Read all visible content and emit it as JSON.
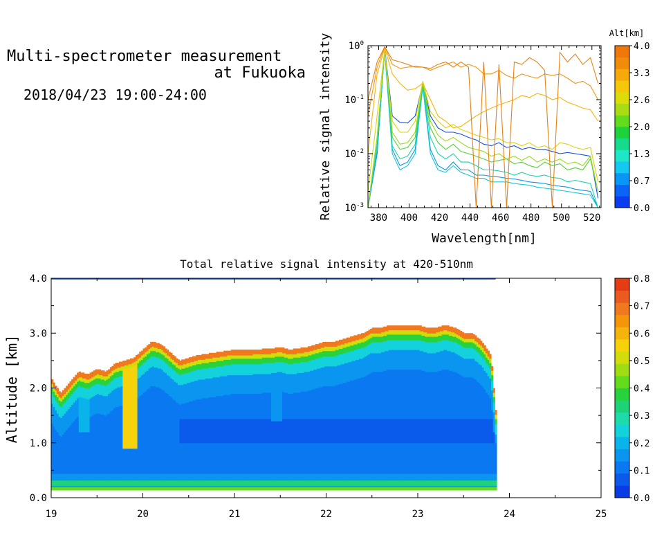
{
  "header": {
    "title_line1": "Multi-spectrometer measurement",
    "title_line2": "at Fukuoka",
    "date_range": "2018/04/23 19:00-24:00"
  },
  "chart_data": [
    {
      "type": "line",
      "title": "",
      "xlabel": "Wavelength[nm]",
      "ylabel": "Relative signal intensity",
      "xlim": [
        373,
        526
      ],
      "ylim": [
        0.001,
        1
      ],
      "yscale": "log",
      "x_ticks": [
        380,
        400,
        420,
        440,
        460,
        480,
        500,
        520
      ],
      "y_ticks": [
        {
          "value": 0.001,
          "base": "10",
          "exp": "-3"
        },
        {
          "value": 0.01,
          "base": "10",
          "exp": "-2"
        },
        {
          "value": 0.1,
          "base": "10",
          "exp": "-1"
        },
        {
          "value": 1,
          "base": "10",
          "exp": "0"
        }
      ],
      "grid": false,
      "colorbar": {
        "label": "Alt[km]",
        "ticks": [
          "0.0",
          "0.7",
          "1.3",
          "2.0",
          "2.6",
          "3.3",
          "4.0"
        ],
        "colors": [
          "#0a3cf0",
          "#0a64f5",
          "#0a96f5",
          "#14c8f0",
          "#1ee6c8",
          "#14dc8c",
          "#1ed23c",
          "#64dc1e",
          "#aadc14",
          "#dcdc0a",
          "#f5c80a",
          "#f5aa0a",
          "#f08c0a",
          "#f0780a"
        ]
      },
      "series": [
        {
          "color": "#1450e6",
          "x": [
            373,
            379,
            384,
            389,
            394,
            399,
            404,
            409,
            414,
            419,
            424,
            429,
            434,
            439,
            444,
            449,
            454,
            459,
            464,
            469,
            474,
            479,
            484,
            489,
            494,
            499,
            504,
            509,
            514,
            519,
            524
          ],
          "y": [
            0.001,
            0.01,
            0.9,
            0.05,
            0.038,
            0.037,
            0.05,
            0.2,
            0.05,
            0.03,
            0.025,
            0.025,
            0.023,
            0.02,
            0.018,
            0.015,
            0.014,
            0.016,
            0.013,
            0.014,
            0.012,
            0.013,
            0.012,
            0.012,
            0.011,
            0.01,
            0.0105,
            0.01,
            0.0095,
            0.009,
            0.0015
          ]
        },
        {
          "color": "#0a96e6",
          "x": [
            373,
            379,
            384,
            389,
            394,
            399,
            404,
            409,
            414,
            419,
            424,
            429,
            434,
            439,
            444,
            449,
            454,
            459,
            464,
            469,
            474,
            479,
            484,
            489,
            494,
            499,
            504,
            509,
            514,
            519,
            524
          ],
          "y": [
            0.001,
            0.01,
            0.85,
            0.012,
            0.006,
            0.007,
            0.012,
            0.18,
            0.012,
            0.006,
            0.005,
            0.007,
            0.005,
            0.005,
            0.004,
            0.004,
            0.0038,
            0.0037,
            0.0035,
            0.0034,
            0.0032,
            0.003,
            0.0029,
            0.0028,
            0.0026,
            0.0025,
            0.0024,
            0.0022,
            0.0021,
            0.002,
            0.001
          ]
        },
        {
          "color": "#14c8dc",
          "x": [
            373,
            379,
            384,
            389,
            394,
            399,
            404,
            409,
            414,
            419,
            424,
            429,
            434,
            439,
            444,
            449,
            454,
            459,
            464,
            469,
            474,
            479,
            484,
            489,
            494,
            499,
            504,
            509,
            514,
            519,
            524
          ],
          "y": [
            0.001,
            0.012,
            0.8,
            0.01,
            0.005,
            0.006,
            0.01,
            0.17,
            0.01,
            0.005,
            0.0045,
            0.006,
            0.0045,
            0.004,
            0.0035,
            0.0035,
            0.003,
            0.003,
            0.003,
            0.0028,
            0.0027,
            0.0026,
            0.0024,
            0.0023,
            0.0022,
            0.0021,
            0.002,
            0.0019,
            0.0018,
            0.0017,
            0.001
          ]
        },
        {
          "color": "#1ed2aa",
          "x": [
            373,
            379,
            384,
            389,
            394,
            399,
            404,
            409,
            414,
            419,
            424,
            429,
            434,
            439,
            444,
            449,
            454,
            459,
            464,
            469,
            474,
            479,
            484,
            489,
            494,
            499,
            504,
            509,
            514,
            519,
            524
          ],
          "y": [
            0.001,
            0.015,
            0.8,
            0.014,
            0.008,
            0.009,
            0.015,
            0.19,
            0.02,
            0.01,
            0.008,
            0.01,
            0.007,
            0.007,
            0.006,
            0.005,
            0.005,
            0.0048,
            0.0045,
            0.004,
            0.0045,
            0.004,
            0.0038,
            0.004,
            0.0036,
            0.0035,
            0.003,
            0.0032,
            0.003,
            0.0028,
            0.001
          ]
        },
        {
          "color": "#50d232",
          "x": [
            373,
            379,
            384,
            389,
            394,
            399,
            404,
            409,
            414,
            419,
            424,
            429,
            434,
            439,
            444,
            449,
            454,
            459,
            464,
            469,
            474,
            479,
            484,
            489,
            494,
            499,
            504,
            509,
            514,
            519,
            524
          ],
          "y": [
            0.001,
            0.02,
            0.85,
            0.02,
            0.012,
            0.013,
            0.02,
            0.2,
            0.03,
            0.016,
            0.012,
            0.015,
            0.011,
            0.01,
            0.009,
            0.008,
            0.007,
            0.0075,
            0.008,
            0.0065,
            0.007,
            0.006,
            0.0055,
            0.007,
            0.006,
            0.0065,
            0.005,
            0.0055,
            0.005,
            0.008,
            0.002
          ]
        },
        {
          "color": "#96dc1e",
          "x": [
            373,
            379,
            384,
            389,
            394,
            399,
            404,
            409,
            414,
            419,
            424,
            429,
            434,
            439,
            444,
            449,
            454,
            459,
            464,
            469,
            474,
            479,
            484,
            489,
            494,
            499,
            504,
            509,
            514,
            519,
            524
          ],
          "y": [
            0.001,
            0.02,
            0.85,
            0.025,
            0.015,
            0.016,
            0.025,
            0.21,
            0.04,
            0.022,
            0.017,
            0.02,
            0.016,
            0.013,
            0.012,
            0.011,
            0.009,
            0.01,
            0.008,
            0.009,
            0.0075,
            0.009,
            0.007,
            0.008,
            0.007,
            0.008,
            0.0065,
            0.007,
            0.006,
            0.009,
            0.002
          ]
        },
        {
          "color": "#dcd214",
          "x": [
            373,
            379,
            384,
            389,
            394,
            399,
            404,
            409,
            414,
            419,
            424,
            429,
            434,
            439,
            444,
            449,
            454,
            459,
            464,
            469,
            474,
            479,
            484,
            489,
            494,
            499,
            504,
            509,
            514,
            519,
            524
          ],
          "y": [
            0.002,
            0.05,
            0.85,
            0.04,
            0.025,
            0.025,
            0.04,
            0.22,
            0.06,
            0.04,
            0.03,
            0.035,
            0.028,
            0.025,
            0.022,
            0.02,
            0.018,
            0.019,
            0.016,
            0.016,
            0.014,
            0.016,
            0.013,
            0.014,
            0.012,
            0.016,
            0.015,
            0.013,
            0.012,
            0.013,
            0.003
          ]
        },
        {
          "color": "#f5b40a",
          "x": [
            373,
            379,
            384,
            389,
            394,
            399,
            404,
            409,
            414,
            419,
            424,
            429,
            434,
            439,
            444,
            449,
            454,
            459,
            464,
            469,
            474,
            479,
            484,
            489,
            494,
            499,
            504,
            509,
            514,
            519,
            524
          ],
          "y": [
            0.01,
            0.3,
            0.9,
            0.3,
            0.2,
            0.15,
            0.16,
            0.2,
            0.1,
            0.05,
            0.04,
            0.03,
            0.032,
            0.04,
            0.05,
            0.06,
            0.07,
            0.08,
            0.09,
            0.1,
            0.12,
            0.11,
            0.13,
            0.12,
            0.1,
            0.11,
            0.09,
            0.08,
            0.07,
            0.065,
            0.04
          ]
        },
        {
          "color": "#f09614",
          "x": [
            373,
            379,
            384,
            389,
            394,
            399,
            404,
            409,
            414,
            419,
            424,
            429,
            434,
            439,
            444,
            449,
            454,
            459,
            464,
            469,
            474,
            479,
            484,
            489,
            494,
            499,
            504,
            509,
            514,
            519,
            524
          ],
          "y": [
            0.05,
            0.4,
            0.95,
            0.45,
            0.38,
            0.4,
            0.42,
            0.4,
            0.35,
            0.4,
            0.45,
            0.5,
            0.4,
            0.45,
            0.4,
            0.3,
            0.3,
            0.35,
            0.28,
            0.25,
            0.3,
            0.27,
            0.25,
            0.3,
            0.28,
            0.3,
            0.25,
            0.2,
            0.22,
            0.18,
            0.1
          ]
        },
        {
          "color": "#e68214",
          "x": [
            373,
            379,
            384,
            389,
            394,
            399,
            404,
            409,
            414,
            419,
            424,
            429,
            434,
            439,
            444,
            449,
            454,
            459,
            464,
            469,
            474,
            479,
            484,
            489,
            494,
            499,
            504,
            509,
            514,
            519,
            524
          ],
          "y": [
            0.1,
            0.5,
            0.95,
            0.55,
            0.5,
            0.45,
            0.4,
            0.4,
            0.38,
            0.45,
            0.5,
            0.4,
            0.5,
            0.4,
            0.001,
            0.5,
            0.001,
            0.45,
            0.001,
            0.5,
            0.45,
            0.6,
            0.5,
            0.35,
            0.001,
            0.75,
            0.5,
            0.7,
            0.45,
            0.6,
            0.2
          ]
        }
      ]
    },
    {
      "type": "heatmap",
      "title": "Total relative signal intensity at 420-510nm",
      "xlabel": "",
      "ylabel": "Altitude [km]",
      "xlim": [
        19,
        25
      ],
      "ylim": [
        0,
        4
      ],
      "x_ticks": [
        "19",
        "20",
        "21",
        "22",
        "23",
        "24",
        "25"
      ],
      "y_ticks": [
        "0.0",
        "1.0",
        "2.0",
        "3.0",
        "4.0"
      ],
      "grid": false,
      "data_end_x": 23.85,
      "colorbar": {
        "ticks": [
          "0.0",
          "0.1",
          "0.2",
          "0.3",
          "0.4",
          "0.5",
          "0.6",
          "0.7",
          "0.8"
        ],
        "colors": [
          "#0a3ce6",
          "#0a5aeb",
          "#0a78f0",
          "#0a96f0",
          "#0ab4eb",
          "#14d2dc",
          "#1edcaa",
          "#1ed278",
          "#28d23c",
          "#64dc1e",
          "#a0dc14",
          "#d2dc0a",
          "#f5d20a",
          "#f5b40a",
          "#f5960a",
          "#f0781e",
          "#eb5a1e",
          "#e63c14"
        ]
      },
      "cloud_top_km": {
        "x": [
          19.0,
          19.05,
          19.1,
          19.2,
          19.3,
          19.4,
          19.5,
          19.6,
          19.7,
          19.8,
          19.9,
          20.0,
          20.1,
          20.2,
          20.3,
          20.4,
          20.5,
          20.6,
          20.8,
          21.0,
          21.2,
          21.4,
          21.5,
          21.6,
          21.8,
          22.0,
          22.1,
          22.2,
          22.3,
          22.4,
          22.5,
          22.6,
          22.7,
          22.8,
          23.0,
          23.1,
          23.2,
          23.3,
          23.4,
          23.5,
          23.6,
          23.7,
          23.8,
          23.85
        ],
        "y": [
          2.2,
          2.05,
          1.9,
          2.1,
          2.3,
          2.25,
          2.35,
          2.3,
          2.45,
          2.5,
          2.55,
          2.7,
          2.85,
          2.8,
          2.65,
          2.5,
          2.55,
          2.6,
          2.65,
          2.7,
          2.7,
          2.72,
          2.75,
          2.7,
          2.75,
          2.85,
          2.85,
          2.9,
          2.95,
          3.0,
          3.1,
          3.1,
          3.15,
          3.15,
          3.15,
          3.1,
          3.1,
          3.15,
          3.1,
          3.0,
          3.0,
          2.85,
          2.6,
          1.6
        ]
      },
      "curtains": [
        {
          "x": 19.85,
          "halfwidth": 0.08,
          "from_km": 0.9,
          "to_km": 2.5,
          "strength": 0.55
        },
        {
          "x": 19.35,
          "halfwidth": 0.06,
          "from_km": 1.2,
          "to_km": 2.2,
          "strength": 0.2
        },
        {
          "x": 21.45,
          "halfwidth": 0.06,
          "from_km": 1.4,
          "to_km": 2.6,
          "strength": 0.15
        },
        {
          "x": 20.45,
          "halfwidth": 0.05,
          "from_km": 0.6,
          "to_km": 1.4,
          "strength": 0.05
        }
      ]
    }
  ]
}
